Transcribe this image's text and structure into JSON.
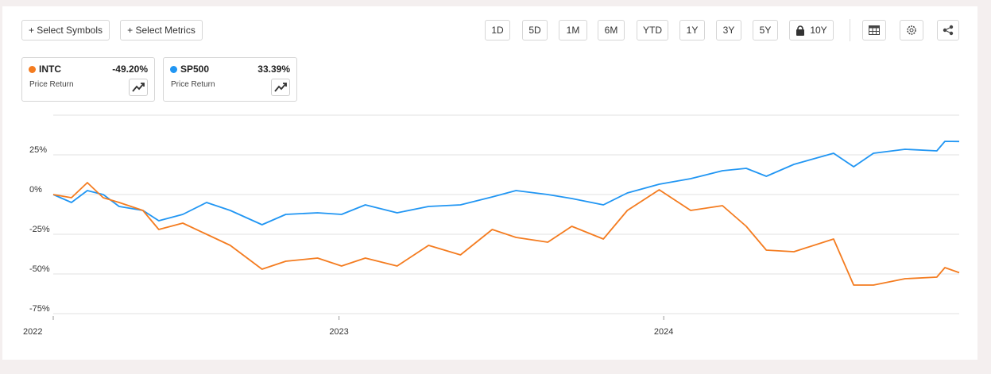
{
  "toolbar": {
    "symbols": "+ Select Symbols",
    "metrics": "+ Select Metrics",
    "ranges": [
      "1D",
      "5D",
      "1M",
      "6M",
      "YTD",
      "1Y",
      "3Y",
      "5Y",
      "10Y"
    ]
  },
  "chart_data": {
    "type": "line",
    "x": [
      2022.12,
      2022.176,
      2022.225,
      2022.274,
      2022.323,
      2022.396,
      2022.445,
      2022.519,
      2022.592,
      2022.665,
      2022.763,
      2022.836,
      2022.934,
      2023.008,
      2023.081,
      2023.179,
      2023.276,
      2023.374,
      2023.472,
      2023.545,
      2023.643,
      2023.717,
      2023.814,
      2023.888,
      2023.986,
      2024.083,
      2024.181,
      2024.254,
      2024.316,
      2024.401,
      2024.523,
      2024.585,
      2024.646,
      2024.743,
      2024.841,
      2024.866,
      2024.91
    ],
    "series": [
      {
        "name": "INTC",
        "color": "#f47c20",
        "metric": "Price Return",
        "change": {
          "value": -49.2,
          "label": "-49.20%"
        },
        "values": [
          0,
          -2,
          7.5,
          -2,
          -5,
          -10,
          -22,
          -18,
          -25,
          -32,
          -47,
          -42,
          -40,
          -45,
          -40,
          -45,
          -32,
          -38,
          -22,
          -27,
          -30,
          -20,
          -28,
          -10,
          3,
          -10,
          -7,
          -20,
          -35,
          -36,
          -28,
          -57,
          -57,
          -53,
          -52,
          -46,
          -49.2
        ]
      },
      {
        "name": "SP500",
        "color": "#2196f3",
        "metric": "Price Return",
        "change": {
          "value": 33.39,
          "label": "33.39%"
        },
        "values": [
          0,
          -5,
          2.5,
          0,
          -7.5,
          -10,
          -16.5,
          -12.5,
          -5,
          -10,
          -19,
          -12.5,
          -11.5,
          -12.5,
          -6.5,
          -11.5,
          -7.5,
          -6.5,
          -1.5,
          2.5,
          0,
          -2.5,
          -6.5,
          1,
          6.5,
          10,
          15,
          16.5,
          11.5,
          19,
          26,
          17.5,
          26,
          28.5,
          27.5,
          33.5,
          33.39
        ]
      }
    ],
    "xlim": [
      2022.12,
      2024.91
    ],
    "xticks": [
      {
        "value": 2022.12,
        "label": "2022"
      },
      2023,
      2024
    ],
    "ylim": [
      -75,
      50
    ],
    "yticks": [
      {
        "value": -75,
        "label": "-75%"
      },
      {
        "value": -50,
        "label": "-50%"
      },
      {
        "value": -25,
        "label": "-25%"
      },
      {
        "value": 0,
        "label": "0%"
      },
      {
        "value": 25,
        "label": "25%"
      }
    ],
    "grid": true
  }
}
